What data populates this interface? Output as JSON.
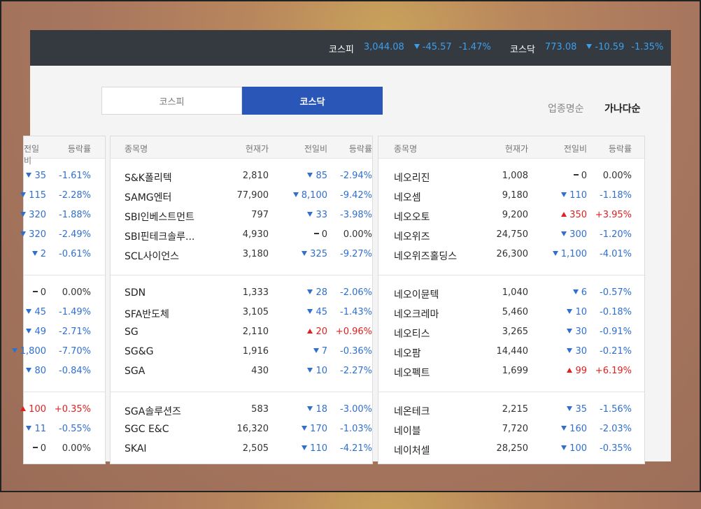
{
  "ticker": [
    {
      "name": "코스피",
      "value": "3,044.08",
      "change": "-45.57",
      "percent": "-1.47%",
      "direction": "down"
    },
    {
      "name": "코스닥",
      "value": "773.08",
      "change": "-10.59",
      "percent": "-1.35%",
      "direction": "down"
    }
  ],
  "tabs": [
    {
      "label": "코스피",
      "active": false
    },
    {
      "label": "코스닥",
      "active": true
    }
  ],
  "sort": {
    "industry": "업종명순",
    "alpha": "가나다순"
  },
  "headers": {
    "name": "종목명",
    "price": "현재가",
    "change": "전일비",
    "rate": "등락률"
  },
  "left_partial": {
    "groups": [
      [
        {
          "change": "35",
          "dir": "down",
          "rate": "-1.61%"
        },
        {
          "change": "115",
          "dir": "down",
          "rate": "-2.28%"
        },
        {
          "change": "320",
          "dir": "down",
          "rate": "-1.88%"
        },
        {
          "change": "320",
          "dir": "down",
          "rate": "-2.49%"
        },
        {
          "change": "2",
          "dir": "down",
          "rate": "-0.61%"
        }
      ],
      [
        {
          "change": "0",
          "dir": "flat",
          "rate": "0.00%"
        },
        {
          "change": "45",
          "dir": "down",
          "rate": "-1.49%"
        },
        {
          "change": "49",
          "dir": "down",
          "rate": "-2.71%"
        },
        {
          "change": "1,800",
          "dir": "down",
          "rate": "-7.70%"
        },
        {
          "change": "80",
          "dir": "down",
          "rate": "-0.84%"
        }
      ],
      [
        {
          "change": "100",
          "dir": "up",
          "rate": "+0.35%"
        },
        {
          "change": "11",
          "dir": "down",
          "rate": "-0.55%"
        },
        {
          "change": "0",
          "dir": "flat",
          "rate": "0.00%"
        }
      ]
    ]
  },
  "middle": {
    "groups": [
      [
        {
          "name": "S&K폴리텍",
          "price": "2,810",
          "change": "85",
          "dir": "down",
          "rate": "-2.94%"
        },
        {
          "name": "SAMG엔터",
          "price": "77,900",
          "change": "8,100",
          "dir": "down",
          "rate": "-9.42%"
        },
        {
          "name": "SBI인베스트먼트",
          "price": "797",
          "change": "33",
          "dir": "down",
          "rate": "-3.98%"
        },
        {
          "name": "SBI핀테크솔루...",
          "price": "4,930",
          "change": "0",
          "dir": "flat",
          "rate": "0.00%"
        },
        {
          "name": "SCL사이언스",
          "price": "3,180",
          "change": "325",
          "dir": "down",
          "rate": "-9.27%"
        }
      ],
      [
        {
          "name": "SDN",
          "price": "1,333",
          "change": "28",
          "dir": "down",
          "rate": "-2.06%"
        },
        {
          "name": "SFA반도체",
          "price": "3,105",
          "change": "45",
          "dir": "down",
          "rate": "-1.43%"
        },
        {
          "name": "SG",
          "price": "2,110",
          "change": "20",
          "dir": "up",
          "rate": "+0.96%"
        },
        {
          "name": "SG&G",
          "price": "1,916",
          "change": "7",
          "dir": "down",
          "rate": "-0.36%"
        },
        {
          "name": "SGA",
          "price": "430",
          "change": "10",
          "dir": "down",
          "rate": "-2.27%"
        }
      ],
      [
        {
          "name": "SGA솔루션즈",
          "price": "583",
          "change": "18",
          "dir": "down",
          "rate": "-3.00%"
        },
        {
          "name": "SGC E&C",
          "price": "16,320",
          "change": "170",
          "dir": "down",
          "rate": "-1.03%"
        },
        {
          "name": "SKAI",
          "price": "2,505",
          "change": "110",
          "dir": "down",
          "rate": "-4.21%"
        }
      ]
    ]
  },
  "right": {
    "groups": [
      [
        {
          "name": "네오리진",
          "price": "1,008",
          "change": "0",
          "dir": "flat",
          "rate": "0.00%"
        },
        {
          "name": "네오셈",
          "price": "9,180",
          "change": "110",
          "dir": "down",
          "rate": "-1.18%"
        },
        {
          "name": "네오오토",
          "price": "9,200",
          "change": "350",
          "dir": "up",
          "rate": "+3.95%"
        },
        {
          "name": "네오위즈",
          "price": "24,750",
          "change": "300",
          "dir": "down",
          "rate": "-1.20%"
        },
        {
          "name": "네오위즈홀딩스",
          "price": "26,300",
          "change": "1,100",
          "dir": "down",
          "rate": "-4.01%"
        }
      ],
      [
        {
          "name": "네오이뮨텍",
          "price": "1,040",
          "change": "6",
          "dir": "down",
          "rate": "-0.57%"
        },
        {
          "name": "네오크레마",
          "price": "5,460",
          "change": "10",
          "dir": "down",
          "rate": "-0.18%"
        },
        {
          "name": "네오티스",
          "price": "3,265",
          "change": "30",
          "dir": "down",
          "rate": "-0.91%"
        },
        {
          "name": "네오팜",
          "price": "14,440",
          "change": "30",
          "dir": "down",
          "rate": "-0.21%"
        },
        {
          "name": "네오펙트",
          "price": "1,699",
          "change": "99",
          "dir": "up",
          "rate": "+6.19%"
        }
      ],
      [
        {
          "name": "네온테크",
          "price": "2,215",
          "change": "35",
          "dir": "down",
          "rate": "-1.56%"
        },
        {
          "name": "네이블",
          "price": "7,720",
          "change": "160",
          "dir": "down",
          "rate": "-2.03%"
        },
        {
          "name": "네이처셀",
          "price": "28,250",
          "change": "100",
          "dir": "down",
          "rate": "-0.35%"
        }
      ]
    ]
  },
  "colors": {
    "up": "#e02020",
    "down": "#2f6fcf",
    "tab_active": "#2a56b8",
    "topbar": "#353a41",
    "ticker": "#3aa0ee"
  }
}
